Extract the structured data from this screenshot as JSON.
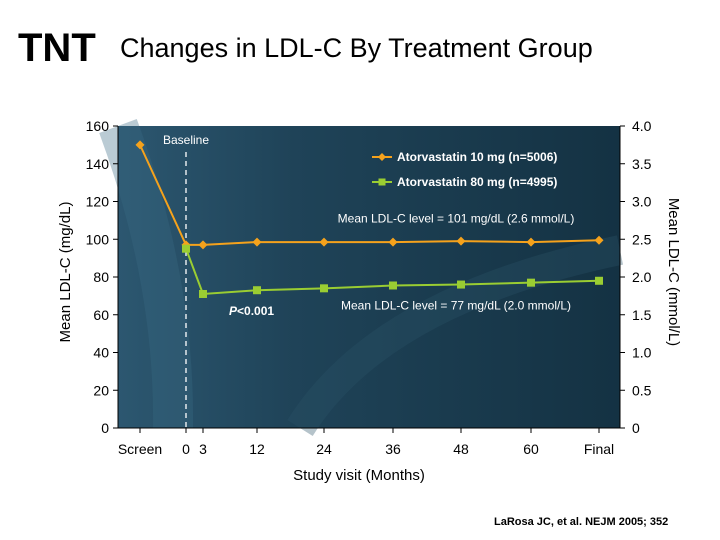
{
  "header": {
    "logo": "TNT",
    "title": "Changes in LDL-C By Treatment Group"
  },
  "citation": "LaRosa JC, et al. NEJM 2005; 352",
  "chart_data": {
    "type": "line",
    "xlabel": "Study visit (Months)",
    "ylabel": "Mean LDL-C (mg/dL)",
    "ylabel_right": "Mean LDL-C (mmol/L)",
    "ylim": [
      0,
      160
    ],
    "yticks": [
      0,
      20,
      40,
      60,
      80,
      100,
      120,
      140,
      160
    ],
    "ylim_right": [
      0,
      4.0
    ],
    "yticks_right": [
      "0",
      "0.5",
      "1.0",
      "1.5",
      "2.0",
      "2.5",
      "3.0",
      "3.5",
      "4.0"
    ],
    "x_tick_labels": [
      "Screen",
      "0",
      "3",
      "12",
      "24",
      "36",
      "48",
      "60",
      "Final"
    ],
    "baseline_label": "Baseline",
    "legend_position": "top-right",
    "series": [
      {
        "name": "Atorvastatin 10 mg (n=5006)",
        "color": "#f5a21c",
        "marker": "diamond",
        "x": [
          "Screen",
          "0",
          "3",
          "12",
          "24",
          "36",
          "48",
          "60",
          "Final"
        ],
        "values": [
          150,
          97,
          97,
          98.5,
          98.5,
          98.5,
          99,
          98.5,
          99.5
        ]
      },
      {
        "name": "Atorvastatin 80 mg (n=4995)",
        "color": "#9acd32",
        "marker": "square",
        "x": [
          "0",
          "3",
          "12",
          "24",
          "36",
          "48",
          "60",
          "Final"
        ],
        "values": [
          95,
          71,
          73,
          74,
          75.5,
          76,
          77,
          78
        ]
      }
    ],
    "annotations": [
      {
        "text": "Mean LDL-C level = 101 mg/dL (2.6 mmol/L)",
        "x": "24",
        "y": 111
      },
      {
        "text": "Mean LDL-C level = 77 mg/dL (2.0 mmol/L)",
        "x": "24",
        "y": 65
      },
      {
        "text": "P<0.001",
        "x": "3",
        "y": 62
      }
    ]
  }
}
